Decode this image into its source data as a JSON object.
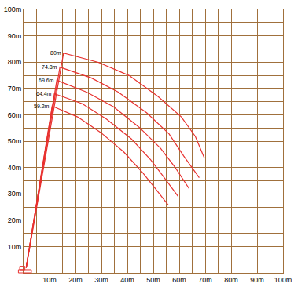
{
  "chart_data": {
    "type": "line",
    "grid": true,
    "xlim": [
      0,
      100
    ],
    "ylim": [
      0,
      100
    ],
    "xticks": [
      {
        "value": 10,
        "label": "10m"
      },
      {
        "value": 20,
        "label": "20m"
      },
      {
        "value": 30,
        "label": "30m"
      },
      {
        "value": 40,
        "label": "40m"
      },
      {
        "value": 50,
        "label": "50m"
      },
      {
        "value": 60,
        "label": "60m"
      },
      {
        "value": 70,
        "label": "70m"
      },
      {
        "value": 80,
        "label": "80m"
      },
      {
        "value": 90,
        "label": "90m"
      },
      {
        "value": 100,
        "label": "100m"
      }
    ],
    "yticks": [
      {
        "value": 10,
        "label": "10m"
      },
      {
        "value": 20,
        "label": "20m"
      },
      {
        "value": 30,
        "label": "30m"
      },
      {
        "value": 40,
        "label": "40m"
      },
      {
        "value": 50,
        "label": "50m"
      },
      {
        "value": 60,
        "label": "60m"
      },
      {
        "value": 70,
        "label": "70m"
      },
      {
        "value": 80,
        "label": "80m"
      },
      {
        "value": 90,
        "label": "90m"
      },
      {
        "value": 100,
        "label": "100m"
      }
    ],
    "series": [
      {
        "name": "80m",
        "color": "#e8312f",
        "x": [
          1,
          15.4,
          28.8,
          40.7,
          51.9,
          60.8,
          66.2,
          69.7
        ],
        "values": [
          2,
          83.4,
          79.9,
          74.9,
          66.9,
          59.2,
          51.8,
          43.5
        ]
      },
      {
        "name": "74.8m",
        "color": "#e8312f",
        "x": [
          1,
          14,
          26.1,
          36.5,
          47.5,
          56.1,
          61.7,
          67.7
        ],
        "values": [
          2,
          78.1,
          74,
          68.6,
          60.7,
          52.7,
          44.4,
          36.1
        ]
      },
      {
        "name": "69.6m",
        "color": "#e8312f",
        "x": [
          1,
          12.8,
          24.3,
          34.7,
          44.5,
          52.8,
          58.5,
          63.8
        ],
        "values": [
          2,
          73.1,
          68.6,
          63,
          55.3,
          47.3,
          39.9,
          32
        ]
      },
      {
        "name": "64.4m",
        "color": "#e8312f",
        "x": [
          1,
          11.9,
          22.6,
          32,
          41.5,
          49,
          54,
          59.6
        ],
        "values": [
          2,
          68,
          64.2,
          58.3,
          50.9,
          42.9,
          36.4,
          29
        ]
      },
      {
        "name": "59.2m",
        "color": "#e8312f",
        "x": [
          1,
          11,
          20.8,
          29.7,
          38.6,
          46,
          51,
          55.8
        ],
        "values": [
          2,
          63.3,
          59.2,
          53.3,
          45.9,
          37.9,
          31.7,
          25.7
        ]
      }
    ]
  }
}
